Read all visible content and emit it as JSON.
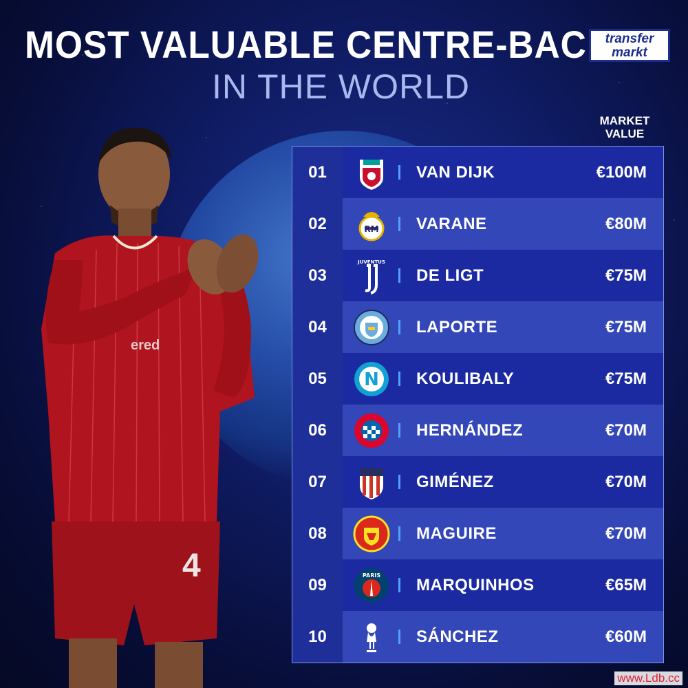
{
  "header": {
    "title": "MOST VALUABLE CENTRE-BACKS",
    "subtitle": "IN THE WORLD",
    "logo_line1": "transfer",
    "logo_line2": "markt"
  },
  "colors": {
    "background": "#0f1b62",
    "row_dark": "#1b2aa0",
    "row_light": "#3447b8",
    "separator": "#4fa3ff",
    "subtitle": "#a9b8ee"
  },
  "chart_data": {
    "type": "table",
    "column_header": "MARKET VALUE",
    "column_header_lines": [
      "MARKET",
      "VALUE"
    ],
    "rows": [
      {
        "rank": "01",
        "player": "VAN DIJK",
        "value": "€100M",
        "value_m": 100,
        "club_icon": "liverpool-crest-icon"
      },
      {
        "rank": "02",
        "player": "VARANE",
        "value": "€80M",
        "value_m": 80,
        "club_icon": "real-madrid-crest-icon"
      },
      {
        "rank": "03",
        "player": "DE LIGT",
        "value": "€75M",
        "value_m": 75,
        "club_icon": "juventus-crest-icon",
        "club_text": "JUVENTUS"
      },
      {
        "rank": "04",
        "player": "LAPORTE",
        "value": "€75M",
        "value_m": 75,
        "club_icon": "manchester-city-crest-icon"
      },
      {
        "rank": "05",
        "player": "KOULIBALY",
        "value": "€75M",
        "value_m": 75,
        "club_icon": "napoli-crest-icon",
        "club_text": "N"
      },
      {
        "rank": "06",
        "player": "HERNÁNDEZ",
        "value": "€70M",
        "value_m": 70,
        "club_icon": "bayern-munich-crest-icon"
      },
      {
        "rank": "07",
        "player": "GIMÉNEZ",
        "value": "€70M",
        "value_m": 70,
        "club_icon": "atletico-madrid-crest-icon"
      },
      {
        "rank": "08",
        "player": "MAGUIRE",
        "value": "€70M",
        "value_m": 70,
        "club_icon": "manchester-united-crest-icon"
      },
      {
        "rank": "09",
        "player": "MARQUINHOS",
        "value": "€65M",
        "value_m": 65,
        "club_icon": "psg-crest-icon",
        "club_text": "PARIS"
      },
      {
        "rank": "10",
        "player": "SÁNCHEZ",
        "value": "€60M",
        "value_m": 60,
        "club_icon": "tottenham-crest-icon"
      }
    ]
  },
  "player_photo": {
    "icon": "footballer-photo",
    "shirt_number": "4"
  },
  "watermark": "www.Ldb.cc"
}
